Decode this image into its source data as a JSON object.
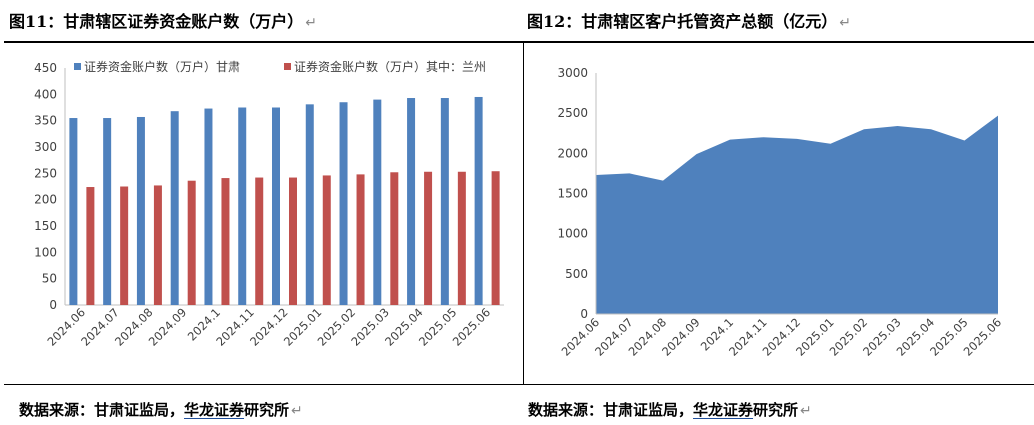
{
  "left": {
    "title": "图11：甘肃辖区证券资金账户数（万户）",
    "source_prefix": "数据来源：甘肃证监局，",
    "source_highlight": "华龙证券",
    "source_suffix": "研究所",
    "return_mark": "↵"
  },
  "right": {
    "title": "图12：甘肃辖区客户托管资产总额（亿元）",
    "source_prefix": "数据来源：甘肃证监局，",
    "source_highlight": "华龙证券",
    "source_suffix": "研究所",
    "return_mark": "↵"
  },
  "chart_data": [
    {
      "type": "bar",
      "title": "图11：甘肃辖区证券资金账户数（万户）",
      "categories": [
        "2024.06",
        "2024.07",
        "2024.08",
        "2024.09",
        "2024.1",
        "2024.11",
        "2024.12",
        "2025.01",
        "2025.02",
        "2025.03",
        "2025.04",
        "2025.05",
        "2025.06"
      ],
      "series": [
        {
          "name": "证券资金账户数（万户）甘肃",
          "color": "#4f81bd",
          "values": [
            355,
            355,
            357,
            368,
            373,
            375,
            375,
            381,
            385,
            390,
            393,
            393,
            395
          ]
        },
        {
          "name": "证券资金账户数（万户）其中：兰州",
          "color": "#c0504d",
          "values": [
            224,
            225,
            227,
            236,
            241,
            242,
            242,
            246,
            248,
            252,
            253,
            253,
            254
          ]
        }
      ],
      "ylim": [
        0,
        450
      ],
      "yticks": [
        0,
        50,
        100,
        150,
        200,
        250,
        300,
        350,
        400,
        450
      ],
      "grid": false,
      "legend": "top"
    },
    {
      "type": "area",
      "title": "图12：甘肃辖区客户托管资产总额（亿元）",
      "categories": [
        "2024.06",
        "2024.07",
        "2024.08",
        "2024.09",
        "2024.1",
        "2024.11",
        "2024.12",
        "2025.01",
        "2025.02",
        "2025.03",
        "2025.04",
        "2025.05",
        "2025.06"
      ],
      "series": [
        {
          "color": "#4f81bd",
          "values": [
            1730,
            1750,
            1660,
            1990,
            2170,
            2200,
            2180,
            2120,
            2300,
            2340,
            2300,
            2160,
            2470
          ]
        }
      ],
      "ylim": [
        0,
        3000
      ],
      "yticks": [
        0,
        500,
        1000,
        1500,
        2000,
        2500,
        3000
      ],
      "grid": false
    }
  ]
}
